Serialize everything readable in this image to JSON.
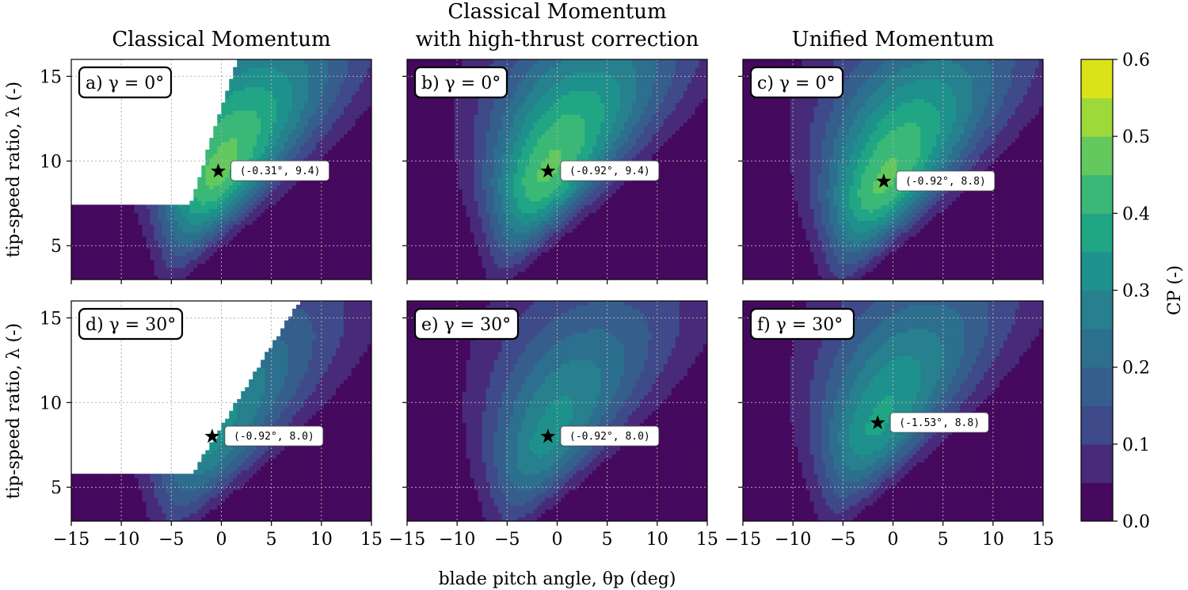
{
  "chart_data": {
    "type": "heatmap",
    "column_titles": [
      [
        "Classical Momentum"
      ],
      [
        "Classical Momentum",
        "with high-thrust correction"
      ],
      [
        "Unified Momentum"
      ]
    ],
    "xlabel": "blade pitch angle, θp (deg)",
    "ylabel": "tip-speed ratio, λ (-)",
    "xlim": [
      -15,
      15
    ],
    "ylim": [
      3,
      16
    ],
    "xticks": [
      "−15",
      "−10",
      "−5",
      "0",
      "5",
      "10",
      "15"
    ],
    "xtick_values": [
      -15,
      -10,
      -5,
      0,
      5,
      10,
      15
    ],
    "yticks": [
      "5",
      "10",
      "15"
    ],
    "ytick_values": [
      5,
      10,
      15
    ],
    "grid": true,
    "colorbar": {
      "label": "CP (-)",
      "min": 0.0,
      "max": 0.6,
      "levels": 12,
      "ticks": [
        "0.0",
        "0.1",
        "0.2",
        "0.3",
        "0.4",
        "0.5",
        "0.6"
      ],
      "tick_values": [
        0.0,
        0.1,
        0.2,
        0.3,
        0.4,
        0.5,
        0.6
      ],
      "colors": [
        "#45095e",
        "#482a7a",
        "#3e4a89",
        "#365e8d",
        "#2d6f8e",
        "#26808e",
        "#1f918c",
        "#21a685",
        "#3bb877",
        "#63c85d",
        "#9ed93a",
        "#dae319"
      ]
    },
    "panels": [
      {
        "label": "a) γ = 0°",
        "optimum_label": "(-0.31°, 9.4)",
        "optimum": [
          -0.31,
          9.4
        ],
        "peak_cp": 0.47
      },
      {
        "label": "b) γ = 0°",
        "optimum_label": "(-0.92°, 9.4)",
        "optimum": [
          -0.92,
          9.4
        ],
        "peak_cp": 0.46
      },
      {
        "label": "c) γ = 0°",
        "optimum_label": "(-0.92°, 8.8)",
        "optimum": [
          -0.92,
          8.8
        ],
        "peak_cp": 0.46
      },
      {
        "label": "d) γ = 30°",
        "optimum_label": "(-0.92°, 8.0)",
        "optimum": [
          -0.92,
          8.0
        ],
        "peak_cp": 0.32
      },
      {
        "label": "e) γ = 30°",
        "optimum_label": "(-0.92°, 8.0)",
        "optimum": [
          -0.92,
          8.0
        ],
        "peak_cp": 0.32
      },
      {
        "label": "f) γ = 30°",
        "optimum_label": "(-1.53°, 8.8)",
        "optimum": [
          -1.53,
          8.8
        ],
        "peak_cp": 0.36
      }
    ]
  }
}
